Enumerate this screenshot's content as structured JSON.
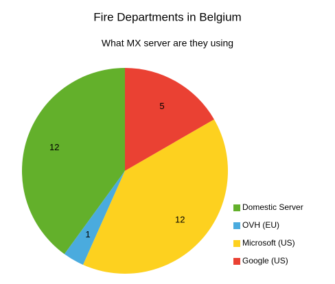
{
  "chart_data": {
    "type": "pie",
    "title": "Fire Departments in Belgium",
    "subtitle": "What MX server are they using",
    "categories": [
      "Domestic Server",
      "OVH (EU)",
      "Microsoft (US)",
      "Google (US)"
    ],
    "values": [
      12,
      1,
      12,
      5
    ],
    "colors": [
      "#63b02b",
      "#4aabde",
      "#fdd11f",
      "#ea4133"
    ],
    "legend": "right"
  }
}
